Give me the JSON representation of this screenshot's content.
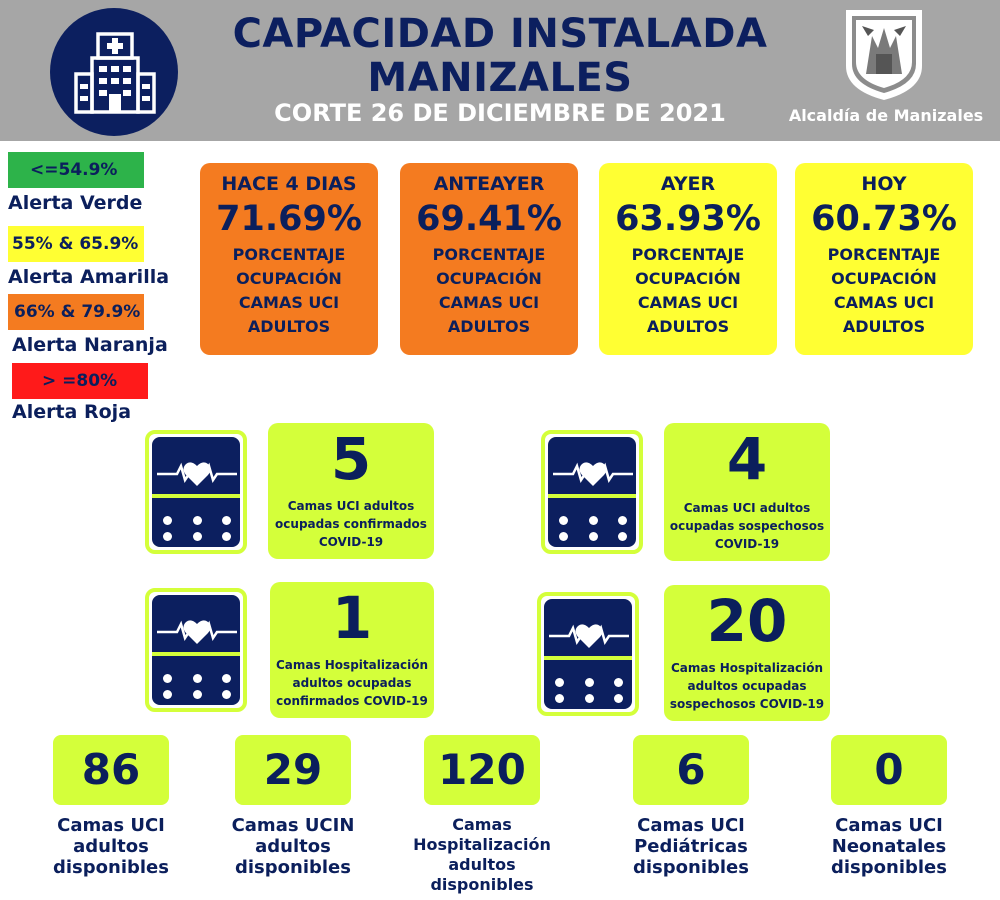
{
  "header": {
    "title_line1": "CAPACIDAD INSTALADA",
    "title_line2": "MANIZALES",
    "subtitle": "CORTE 26 DE DICIEMBRE  DE 2021",
    "org": "Alcaldía de Manizales"
  },
  "legend": [
    {
      "range": "<=54.9%",
      "label": "Alerta Verde",
      "color": "#2db34a"
    },
    {
      "range": "55% & 65.9%",
      "label": "Alerta Amarilla",
      "color": "#ffff33"
    },
    {
      "range": "66% & 79.9%",
      "label": "Alerta Naranja",
      "color": "#f47b20"
    },
    {
      "range": "> =80%",
      "label": "Alerta Roja",
      "color": "#ff1a1a"
    }
  ],
  "occupancy": [
    {
      "when": "HACE 4 DIAS",
      "pct": "71.69%",
      "desc": [
        "PORCENTAJE",
        "OCUPACIÓN",
        "CAMAS UCI",
        "ADULTOS"
      ],
      "color": "#f47b20"
    },
    {
      "when": "ANTEAYER",
      "pct": "69.41%",
      "desc": [
        "PORCENTAJE",
        "OCUPACIÓN",
        "CAMAS UCI",
        "ADULTOS"
      ],
      "color": "#f47b20"
    },
    {
      "when": "AYER",
      "pct": "63.93%",
      "desc": [
        "PORCENTAJE",
        "OCUPACIÓN",
        "CAMAS UCI",
        "ADULTOS"
      ],
      "color": "#ffff33"
    },
    {
      "when": "HOY",
      "pct": "60.73%",
      "desc": [
        "PORCENTAJE",
        "OCUPACIÓN",
        "CAMAS UCI",
        "ADULTOS"
      ],
      "color": "#ffff33"
    }
  ],
  "covid_stats": [
    {
      "value": "5",
      "label": [
        "Camas UCI adultos",
        "ocupadas confirmados",
        "COVID-19"
      ]
    },
    {
      "value": "4",
      "label": [
        "Camas UCI adultos",
        "ocupadas sospechosos",
        "COVID-19"
      ]
    },
    {
      "value": "1",
      "label": [
        "Camas  Hospitalización",
        "adultos ocupadas",
        "confirmados COVID-19"
      ]
    },
    {
      "value": "20",
      "label": [
        "Camas  Hospitalización",
        "adultos ocupadas",
        "sospechosos COVID-19"
      ]
    }
  ],
  "available": [
    {
      "value": "86",
      "label": [
        "Camas UCI",
        "adultos",
        "disponibles"
      ]
    },
    {
      "value": "29",
      "label": [
        "Camas UCIN",
        "adultos",
        "disponibles"
      ]
    },
    {
      "value": "120",
      "label": [
        "Camas",
        "Hospitalización",
        "adultos",
        "disponibles"
      ]
    },
    {
      "value": "6",
      "label": [
        "Camas  UCI",
        "Pediátricas",
        "disponibles"
      ]
    },
    {
      "value": "0",
      "label": [
        "Camas  UCI",
        "Neonatales",
        "disponibles"
      ]
    }
  ],
  "colors": {
    "navy": "#0c1f5f",
    "lime": "#d4ff3a",
    "header_gray": "#a6a6a6"
  },
  "icons": [
    "hospital-icon",
    "coat-of-arms-icon",
    "heart-monitor-icon"
  ]
}
